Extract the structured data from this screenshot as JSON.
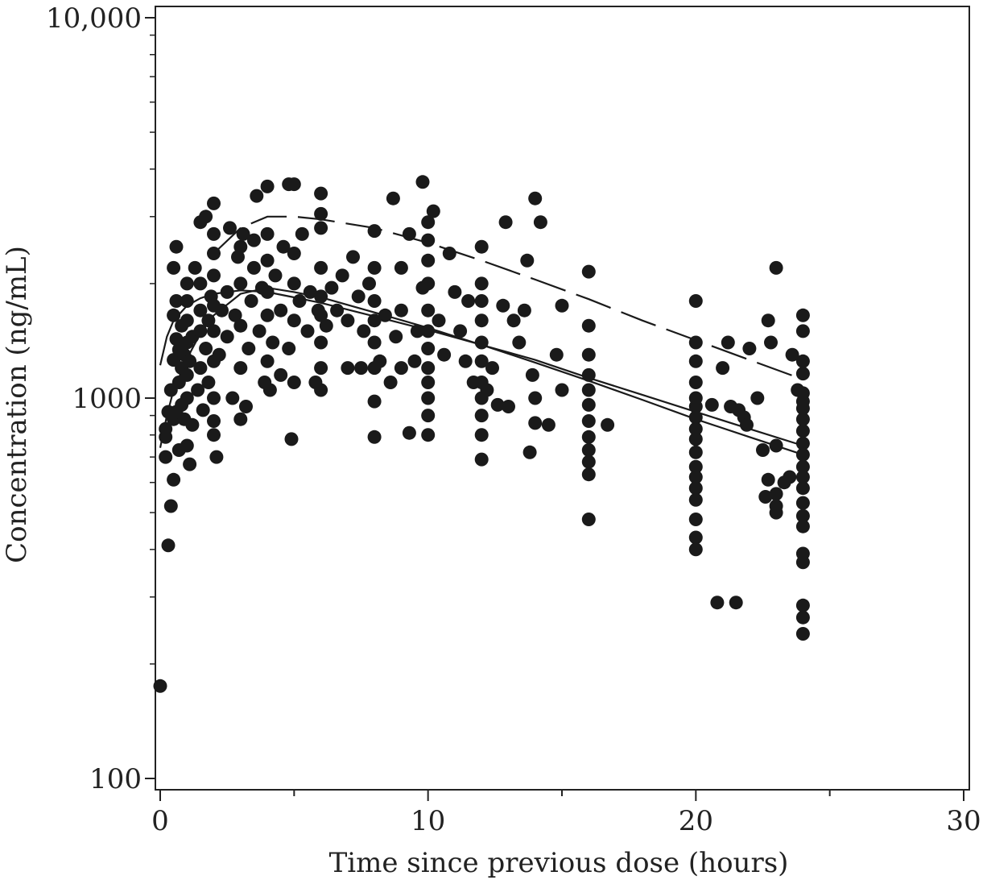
{
  "chart_data": {
    "type": "scatter",
    "title": "",
    "xlabel": "Time since previous dose (hours)",
    "ylabel": "Concentration (ng/mL)",
    "xlim": [
      0,
      30
    ],
    "ylim": [
      100,
      10000
    ],
    "y_scale": "log",
    "x_ticks": [
      0,
      10,
      20,
      30
    ],
    "x_tick_labels": [
      "0",
      "10",
      "20",
      "30"
    ],
    "y_ticks": [
      100,
      1000,
      10000
    ],
    "y_tick_labels": [
      "100",
      "1000",
      "10,000"
    ],
    "grid": false,
    "legend": "none",
    "marker_color": "#1a1a1a",
    "lines": [
      {
        "style": "solid",
        "x": [
          0,
          0.25,
          0.5,
          1,
          1.5,
          2,
          3,
          4,
          5,
          6,
          8,
          10,
          12,
          14,
          16,
          18,
          20,
          22,
          24
        ],
        "y": [
          1220,
          1450,
          1600,
          1750,
          1830,
          1880,
          1920,
          1900,
          1840,
          1780,
          1640,
          1510,
          1380,
          1260,
          1130,
          1020,
          920,
          830,
          750
        ]
      },
      {
        "style": "solid",
        "x": [
          0,
          0.25,
          0.5,
          1,
          1.5,
          2,
          3,
          4,
          5,
          6,
          8,
          10,
          12,
          14,
          16,
          18,
          20,
          22,
          24
        ],
        "y": [
          740,
          900,
          1050,
          1270,
          1480,
          1650,
          1880,
          1950,
          1900,
          1840,
          1680,
          1530,
          1380,
          1240,
          1110,
          990,
          880,
          790,
          710
        ]
      },
      {
        "style": "dashed",
        "x": [
          2,
          3,
          4,
          5,
          6,
          8,
          10,
          12,
          14,
          16,
          18,
          20,
          22,
          24
        ],
        "y": [
          2400,
          2800,
          3000,
          3000,
          2950,
          2800,
          2560,
          2300,
          2050,
          1820,
          1600,
          1420,
          1260,
          1120
        ]
      }
    ],
    "points": [
      [
        0,
        175
      ],
      [
        0.2,
        700
      ],
      [
        0.2,
        790
      ],
      [
        0.2,
        830
      ],
      [
        0.3,
        410
      ],
      [
        0.3,
        920
      ],
      [
        0.4,
        520
      ],
      [
        0.4,
        1050
      ],
      [
        0.5,
        610
      ],
      [
        0.5,
        880
      ],
      [
        0.5,
        1260
      ],
      [
        0.5,
        1650
      ],
      [
        0.5,
        2200
      ],
      [
        0.6,
        920
      ],
      [
        0.6,
        1430
      ],
      [
        0.6,
        1800
      ],
      [
        0.6,
        2500
      ],
      [
        0.7,
        730
      ],
      [
        0.7,
        1100
      ],
      [
        0.7,
        1340
      ],
      [
        0.8,
        960
      ],
      [
        0.8,
        1200
      ],
      [
        0.8,
        1550
      ],
      [
        0.9,
        880
      ],
      [
        0.9,
        1300
      ],
      [
        1,
        750
      ],
      [
        1,
        1000
      ],
      [
        1,
        1150
      ],
      [
        1,
        1400
      ],
      [
        1,
        1600
      ],
      [
        1,
        1800
      ],
      [
        1,
        2000
      ],
      [
        1.1,
        670
      ],
      [
        1.1,
        1250
      ],
      [
        1.2,
        850
      ],
      [
        1.2,
        1450
      ],
      [
        1.3,
        2200
      ],
      [
        1.4,
        1050
      ],
      [
        1.5,
        1200
      ],
      [
        1.5,
        1500
      ],
      [
        1.5,
        1700
      ],
      [
        1.5,
        2000
      ],
      [
        1.5,
        2900
      ],
      [
        1.6,
        930
      ],
      [
        1.7,
        1350
      ],
      [
        1.7,
        3000
      ],
      [
        1.8,
        1100
      ],
      [
        1.8,
        1600
      ],
      [
        1.9,
        1850
      ],
      [
        2,
        800
      ],
      [
        2,
        870
      ],
      [
        2,
        1000
      ],
      [
        2,
        1250
      ],
      [
        2,
        1500
      ],
      [
        2,
        1750
      ],
      [
        2,
        2100
      ],
      [
        2,
        2400
      ],
      [
        2,
        2700
      ],
      [
        2,
        3250
      ],
      [
        2.1,
        700
      ],
      [
        2.2,
        1300
      ],
      [
        2.3,
        1700
      ],
      [
        2.5,
        1450
      ],
      [
        2.5,
        1900
      ],
      [
        2.6,
        2800
      ],
      [
        2.7,
        1000
      ],
      [
        2.8,
        1650
      ],
      [
        2.9,
        2350
      ],
      [
        3,
        880
      ],
      [
        3,
        1200
      ],
      [
        3,
        1550
      ],
      [
        3,
        2000
      ],
      [
        3,
        2500
      ],
      [
        3.1,
        2700
      ],
      [
        3.2,
        950
      ],
      [
        3.3,
        1350
      ],
      [
        3.4,
        1800
      ],
      [
        3.5,
        2200
      ],
      [
        3.5,
        2600
      ],
      [
        3.6,
        3400
      ],
      [
        3.7,
        1500
      ],
      [
        3.8,
        1950
      ],
      [
        3.9,
        1100
      ],
      [
        4,
        1250
      ],
      [
        4,
        1650
      ],
      [
        4,
        1900
      ],
      [
        4,
        2300
      ],
      [
        4,
        2700
      ],
      [
        4,
        3600
      ],
      [
        4.1,
        1050
      ],
      [
        4.2,
        1400
      ],
      [
        4.3,
        2100
      ],
      [
        4.5,
        1150
      ],
      [
        4.5,
        1700
      ],
      [
        4.6,
        2500
      ],
      [
        4.8,
        1350
      ],
      [
        4.8,
        3650
      ],
      [
        4.9,
        780
      ],
      [
        5,
        1100
      ],
      [
        5,
        1600
      ],
      [
        5,
        2000
      ],
      [
        5,
        2400
      ],
      [
        5,
        3650
      ],
      [
        5.2,
        1800
      ],
      [
        5.3,
        2700
      ],
      [
        5.5,
        1500
      ],
      [
        5.6,
        1900
      ],
      [
        5.8,
        1100
      ],
      [
        5.9,
        1700
      ],
      [
        6,
        1050
      ],
      [
        6,
        1200
      ],
      [
        6,
        1400
      ],
      [
        6,
        1650
      ],
      [
        6,
        1850
      ],
      [
        6,
        2200
      ],
      [
        6,
        2800
      ],
      [
        6,
        3050
      ],
      [
        6,
        3450
      ],
      [
        6.2,
        1550
      ],
      [
        6.4,
        1950
      ],
      [
        6.6,
        1700
      ],
      [
        6.8,
        2100
      ],
      [
        7,
        1200
      ],
      [
        7,
        1600
      ],
      [
        7.2,
        2350
      ],
      [
        7.4,
        1850
      ],
      [
        7.5,
        1200
      ],
      [
        7.6,
        1500
      ],
      [
        7.8,
        2000
      ],
      [
        8,
        790
      ],
      [
        8,
        980
      ],
      [
        8,
        1200
      ],
      [
        8,
        1400
      ],
      [
        8,
        1600
      ],
      [
        8,
        1800
      ],
      [
        8,
        2200
      ],
      [
        8,
        2750
      ],
      [
        8.2,
        1250
      ],
      [
        8.4,
        1650
      ],
      [
        8.6,
        1100
      ],
      [
        8.7,
        3350
      ],
      [
        8.8,
        1450
      ],
      [
        9,
        1200
      ],
      [
        9,
        1700
      ],
      [
        9,
        2200
      ],
      [
        9.3,
        810
      ],
      [
        9.3,
        2700
      ],
      [
        9.5,
        1250
      ],
      [
        9.6,
        1500
      ],
      [
        9.8,
        1950
      ],
      [
        9.8,
        3700
      ],
      [
        10,
        800
      ],
      [
        10,
        900
      ],
      [
        10,
        1000
      ],
      [
        10,
        1100
      ],
      [
        10,
        1200
      ],
      [
        10,
        1350
      ],
      [
        10,
        1500
      ],
      [
        10,
        1700
      ],
      [
        10,
        2000
      ],
      [
        10,
        2300
      ],
      [
        10,
        2600
      ],
      [
        10,
        2900
      ],
      [
        10.2,
        3100
      ],
      [
        10.4,
        1600
      ],
      [
        10.6,
        1300
      ],
      [
        10.8,
        2400
      ],
      [
        11,
        1900
      ],
      [
        11.2,
        1500
      ],
      [
        11.4,
        1250
      ],
      [
        11.5,
        1800
      ],
      [
        11.7,
        1100
      ],
      [
        12,
        690
      ],
      [
        12,
        800
      ],
      [
        12,
        900
      ],
      [
        12,
        1000
      ],
      [
        12,
        1100
      ],
      [
        12,
        1250
      ],
      [
        12,
        1400
      ],
      [
        12,
        1600
      ],
      [
        12,
        1800
      ],
      [
        12,
        2000
      ],
      [
        12,
        2500
      ],
      [
        12.2,
        1050
      ],
      [
        12.4,
        1200
      ],
      [
        12.6,
        960
      ],
      [
        12.8,
        1750
      ],
      [
        12.9,
        2900
      ],
      [
        13,
        950
      ],
      [
        13.2,
        1600
      ],
      [
        13.4,
        1400
      ],
      [
        13.6,
        1700
      ],
      [
        13.7,
        2300
      ],
      [
        13.8,
        720
      ],
      [
        13.9,
        1150
      ],
      [
        14,
        860
      ],
      [
        14,
        1000
      ],
      [
        14,
        3350
      ],
      [
        14.2,
        2900
      ],
      [
        14.5,
        850
      ],
      [
        14.8,
        1300
      ],
      [
        15,
        1050
      ],
      [
        15,
        1750
      ],
      [
        16,
        480
      ],
      [
        16,
        630
      ],
      [
        16,
        680
      ],
      [
        16,
        730
      ],
      [
        16,
        790
      ],
      [
        16,
        870
      ],
      [
        16,
        960
      ],
      [
        16,
        1050
      ],
      [
        16,
        1150
      ],
      [
        16,
        1300
      ],
      [
        16,
        1550
      ],
      [
        16,
        2150
      ],
      [
        16.7,
        850
      ],
      [
        20,
        400
      ],
      [
        20,
        430
      ],
      [
        20,
        480
      ],
      [
        20,
        540
      ],
      [
        20,
        580
      ],
      [
        20,
        620
      ],
      [
        20,
        660
      ],
      [
        20,
        720
      ],
      [
        20,
        780
      ],
      [
        20,
        830
      ],
      [
        20,
        890
      ],
      [
        20,
        950
      ],
      [
        20,
        1000
      ],
      [
        20,
        1100
      ],
      [
        20,
        1250
      ],
      [
        20,
        1400
      ],
      [
        20,
        1800
      ],
      [
        20.6,
        960
      ],
      [
        20.8,
        290
      ],
      [
        21,
        1200
      ],
      [
        21.2,
        1400
      ],
      [
        21.3,
        950
      ],
      [
        21.5,
        290
      ],
      [
        21.6,
        930
      ],
      [
        21.8,
        890
      ],
      [
        21.9,
        850
      ],
      [
        22,
        1350
      ],
      [
        22.3,
        1000
      ],
      [
        22.5,
        730
      ],
      [
        22.6,
        550
      ],
      [
        22.7,
        610
      ],
      [
        22.7,
        1600
      ],
      [
        22.8,
        1400
      ],
      [
        23,
        500
      ],
      [
        23,
        520
      ],
      [
        23,
        560
      ],
      [
        23,
        750
      ],
      [
        23,
        2200
      ],
      [
        23.3,
        600
      ],
      [
        23.5,
        620
      ],
      [
        23.6,
        1300
      ],
      [
        23.8,
        1050
      ],
      [
        24,
        240
      ],
      [
        24,
        265
      ],
      [
        24,
        285
      ],
      [
        24,
        370
      ],
      [
        24,
        390
      ],
      [
        24,
        460
      ],
      [
        24,
        490
      ],
      [
        24,
        530
      ],
      [
        24,
        580
      ],
      [
        24,
        620
      ],
      [
        24,
        660
      ],
      [
        24,
        710
      ],
      [
        24,
        760
      ],
      [
        24,
        820
      ],
      [
        24,
        880
      ],
      [
        24,
        940
      ],
      [
        24,
        980
      ],
      [
        24,
        1030
      ],
      [
        24,
        1160
      ],
      [
        24,
        1250
      ],
      [
        24,
        1500
      ],
      [
        24,
        1650
      ]
    ]
  }
}
